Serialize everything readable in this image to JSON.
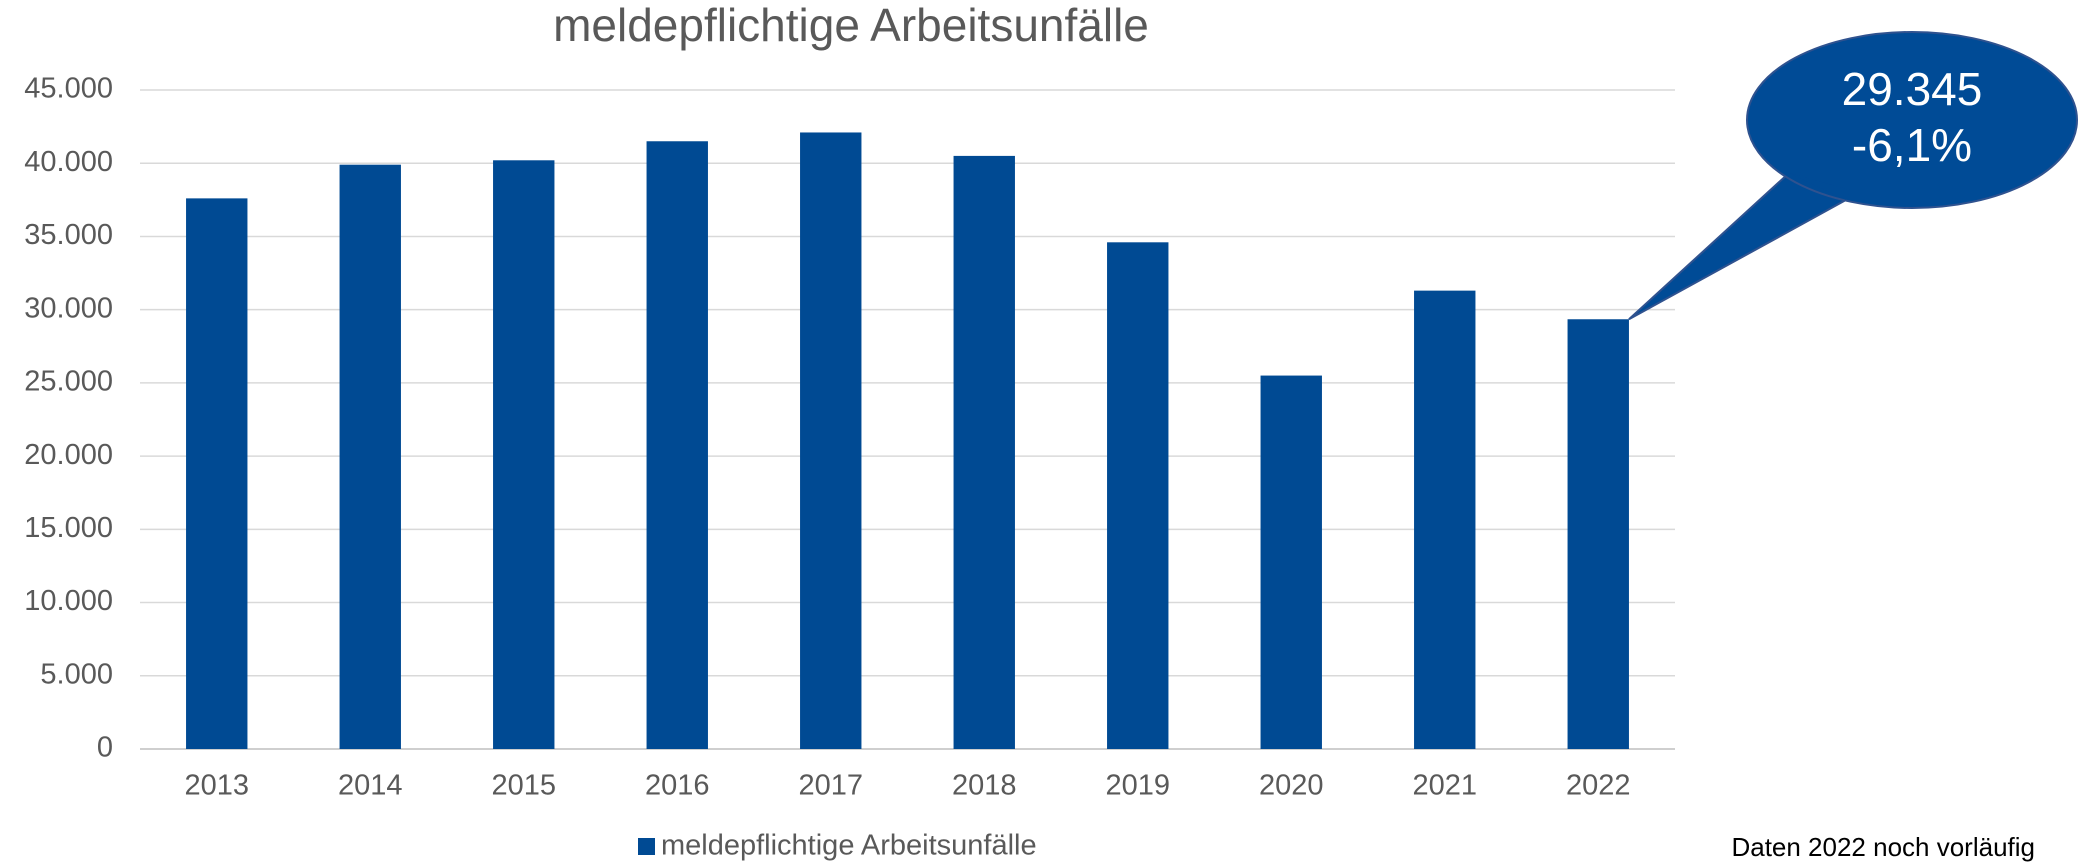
{
  "chart_data": {
    "type": "bar",
    "title": "meldepflichtige Arbeitsunfälle",
    "categories": [
      "2013",
      "2014",
      "2015",
      "2016",
      "2017",
      "2018",
      "2019",
      "2020",
      "2021",
      "2022"
    ],
    "series": [
      {
        "name": "meldepflichtige Arbeitsunfälle",
        "color": "#004a93",
        "values": [
          37600,
          39900,
          40200,
          41500,
          42100,
          40500,
          34600,
          25500,
          31300,
          29345
        ],
        "value_labels": [
          null,
          null,
          null,
          null,
          null,
          null,
          null,
          null,
          null,
          "29.345"
        ]
      }
    ],
    "annotation": "-6,1%",
    "note": "Daten 2022 noch vorläufig",
    "ylim": [
      0,
      45000
    ],
    "yticks": [
      0,
      {
        "value": 5000,
        "label": "5.000"
      },
      {
        "value": 10000,
        "label": "10.000"
      },
      {
        "value": 15000,
        "label": "15.000"
      },
      {
        "value": 20000,
        "label": "20.000"
      },
      {
        "value": 25000,
        "label": "25.000"
      },
      {
        "value": 30000,
        "label": "30.000"
      },
      {
        "value": 35000,
        "label": "35.000"
      },
      {
        "value": 40000,
        "label": "40.000"
      },
      {
        "value": 45000,
        "label": "45.000"
      }
    ],
    "grid": true,
    "legend": "bottom"
  }
}
